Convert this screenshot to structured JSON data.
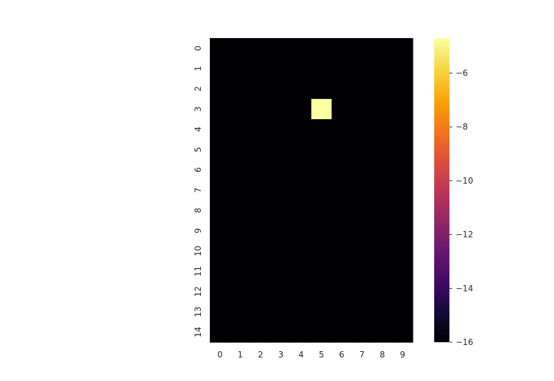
{
  "chart_data": {
    "type": "heatmap",
    "title": "",
    "xlabel": "",
    "ylabel": "",
    "rows": 15,
    "cols": 10,
    "x_tick_labels": [
      "0",
      "1",
      "2",
      "3",
      "4",
      "5",
      "6",
      "7",
      "8",
      "9"
    ],
    "y_tick_labels": [
      "0",
      "1",
      "2",
      "3",
      "4",
      "5",
      "6",
      "7",
      "8",
      "9",
      "10",
      "11",
      "12",
      "13",
      "14"
    ],
    "background_value": -16,
    "values_note": "",
    "cells": [
      {
        "row": 3,
        "col": 5,
        "value": -4.7
      }
    ],
    "colormap": "inferno",
    "colorbar": {
      "vmin": -16,
      "vmax": -4.7,
      "ticks": [
        -6,
        -8,
        -10,
        -12,
        -14,
        -16
      ],
      "tick_labels": [
        "−6",
        "−8",
        "−10",
        "−12",
        "−14",
        "−16"
      ]
    },
    "grid": false,
    "colors": {
      "low": "#000004",
      "high": "#fcffa4"
    }
  }
}
